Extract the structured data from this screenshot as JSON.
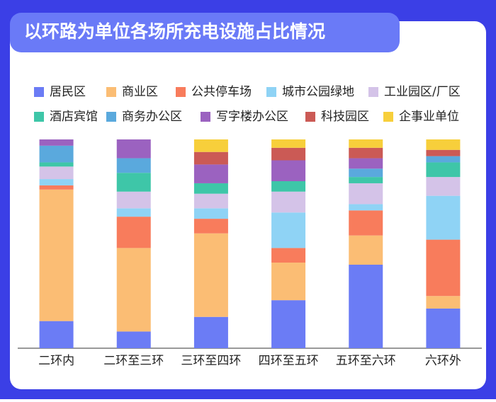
{
  "chart_data": {
    "type": "stacked_bar_100",
    "title": "以环路为单位各场所充电设施占比情况",
    "categories": [
      "二环内",
      "二环至三环",
      "三环至四环",
      "四环至五环",
      "五环至六环",
      "六环外"
    ],
    "series": [
      {
        "name": "居民区",
        "color": "#6b7cf5",
        "values": [
          13,
          8,
          15,
          23,
          40,
          19
        ]
      },
      {
        "name": "商业区",
        "color": "#fbbd74",
        "values": [
          63,
          40,
          40,
          18,
          14,
          6
        ]
      },
      {
        "name": "公共停车场",
        "color": "#f87c5c",
        "values": [
          2,
          15,
          7,
          7,
          12,
          27
        ]
      },
      {
        "name": "城市公园绿地",
        "color": "#8fd3f5",
        "values": [
          3,
          4,
          5,
          17,
          3,
          21
        ]
      },
      {
        "name": "工业园区/厂区",
        "color": "#d4c3e8",
        "values": [
          6,
          8,
          7,
          10,
          10,
          9
        ]
      },
      {
        "name": "酒店宾馆",
        "color": "#3ec6a8",
        "values": [
          2,
          9,
          5,
          5,
          3,
          7
        ]
      },
      {
        "name": "商务办公区",
        "color": "#5aa9dd",
        "values": [
          8,
          7,
          0,
          0,
          4,
          3
        ]
      },
      {
        "name": "写字楼办公区",
        "color": "#9b62c0",
        "values": [
          3,
          9,
          9,
          10,
          5,
          0
        ]
      },
      {
        "name": "科技园区",
        "color": "#cb5a55",
        "values": [
          0,
          0,
          6,
          6,
          5,
          3
        ]
      },
      {
        "name": "企事业单位",
        "color": "#f7cf3b",
        "values": [
          0,
          0,
          6,
          4,
          4,
          5
        ]
      }
    ]
  }
}
